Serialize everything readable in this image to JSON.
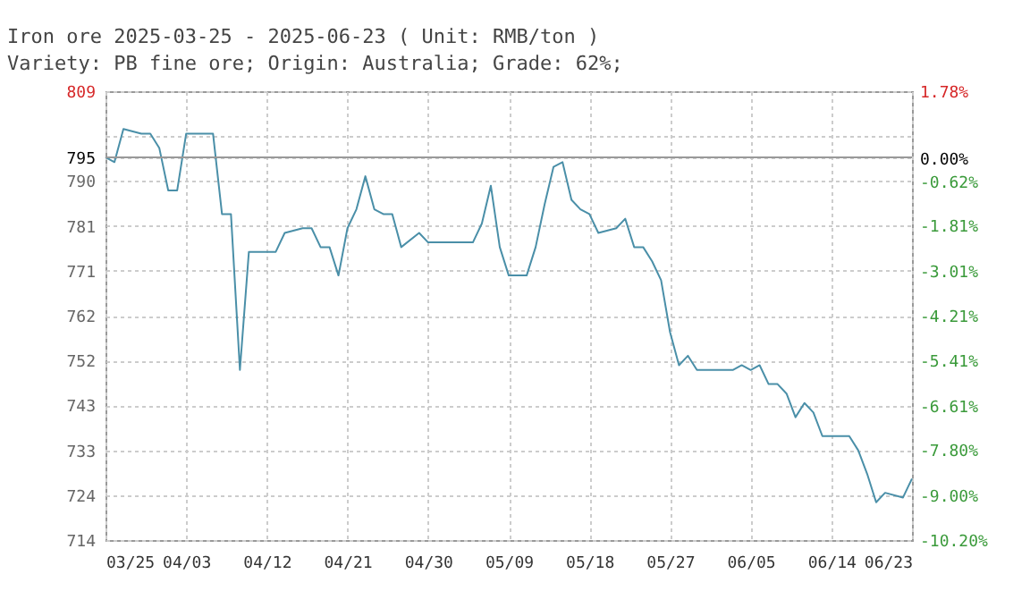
{
  "chart_data": {
    "type": "line",
    "title": "Iron ore 2025-03-25 - 2025-06-23    ( Unit: RMB/ton )",
    "subtitle": "Variety: PB fine ore; Origin: Australia; Grade: 62%;",
    "x": [
      "2025-03-25",
      "2025-03-26",
      "2025-03-27",
      "2025-03-29",
      "2025-03-30",
      "2025-03-31",
      "2025-04-01",
      "2025-04-02",
      "2025-04-03",
      "2025-04-06",
      "2025-04-07",
      "2025-04-08",
      "2025-04-09",
      "2025-04-10",
      "2025-04-13",
      "2025-04-14",
      "2025-04-16",
      "2025-04-17",
      "2025-04-18",
      "2025-04-19",
      "2025-04-20",
      "2025-04-21",
      "2025-04-22",
      "2025-04-23",
      "2025-04-24",
      "2025-04-25",
      "2025-04-26",
      "2025-04-27",
      "2025-04-29",
      "2025-04-30",
      "2025-05-05",
      "2025-05-06",
      "2025-05-07",
      "2025-05-08",
      "2025-05-09",
      "2025-05-11",
      "2025-05-12",
      "2025-05-13",
      "2025-05-14",
      "2025-05-15",
      "2025-05-16",
      "2025-05-17",
      "2025-05-18",
      "2025-05-19",
      "2025-05-21",
      "2025-05-22",
      "2025-05-23",
      "2025-05-24",
      "2025-05-25",
      "2025-05-26",
      "2025-05-27",
      "2025-05-28",
      "2025-05-29",
      "2025-05-30",
      "2025-06-03",
      "2025-06-04",
      "2025-06-05",
      "2025-06-06",
      "2025-06-07",
      "2025-06-08",
      "2025-06-09",
      "2025-06-10",
      "2025-06-11",
      "2025-06-12",
      "2025-06-13",
      "2025-06-16",
      "2025-06-17",
      "2025-06-18",
      "2025-06-19",
      "2025-06-20",
      "2025-06-22",
      "2025-06-23"
    ],
    "series": [
      {
        "color": "#4a8fa8",
        "values": [
          795,
          794,
          801,
          800,
          800,
          797,
          788,
          788,
          800,
          800,
          783,
          783,
          750,
          775,
          775,
          779,
          780,
          780,
          776,
          776,
          770,
          780,
          784,
          791,
          784,
          783,
          783,
          776,
          779,
          777,
          777,
          781,
          789,
          776,
          770,
          770,
          776,
          785,
          793,
          794,
          786,
          784,
          783,
          779,
          780,
          782,
          776,
          776,
          773,
          769,
          758,
          751,
          753,
          750,
          750,
          751,
          750,
          751,
          747,
          747,
          745,
          740,
          743,
          741,
          736,
          736,
          733,
          728,
          722,
          724,
          723,
          727
        ]
      }
    ],
    "xlim": [
      "2025-03-25",
      "2025-06-23"
    ],
    "xticks": [
      {
        "value": "2025-03-25",
        "label": "03/25"
      },
      {
        "value": "2025-04-03",
        "label": "04/03"
      },
      {
        "value": "2025-04-12",
        "label": "04/12"
      },
      {
        "value": "2025-04-21",
        "label": "04/21"
      },
      {
        "value": "2025-04-30",
        "label": "04/30"
      },
      {
        "value": "2025-05-09",
        "label": "05/09"
      },
      {
        "value": "2025-05-18",
        "label": "05/18"
      },
      {
        "value": "2025-05-27",
        "label": "05/27"
      },
      {
        "value": "2025-06-05",
        "label": "06/05"
      },
      {
        "value": "2025-06-14",
        "label": "06/14"
      },
      {
        "value": "2025-06-23",
        "label": "06/23"
      }
    ],
    "ylim": [
      714,
      809
    ],
    "yticks": [
      714,
      {
        "value": 723.5,
        "label": "724"
      },
      733,
      {
        "value": 742.5,
        "label": "743"
      },
      752,
      {
        "value": 761.5,
        "label": "762"
      },
      771,
      {
        "value": 780.5,
        "label": "781"
      },
      790,
      795,
      {
        "value": 799.5,
        "label": null
      },
      809
    ],
    "y2lim": [
      -10.2,
      1.78
    ],
    "y2ticks": [
      {
        "value": -10.2,
        "label": "-10.20%"
      },
      {
        "value": -9.0,
        "label": "-9.00%"
      },
      {
        "value": -7.8,
        "label": "-7.80%"
      },
      {
        "value": -6.61,
        "label": "-6.61%"
      },
      {
        "value": -5.41,
        "label": "-5.41%"
      },
      {
        "value": -4.21,
        "label": "-4.21%"
      },
      {
        "value": -3.01,
        "label": "-3.01%"
      },
      {
        "value": -1.81,
        "label": "-1.81%"
      },
      {
        "value": -0.62,
        "label": "-0.62%"
      },
      {
        "value": 0.0,
        "label": "0.00%"
      },
      {
        "value": 1.78,
        "label": "1.78%"
      }
    ],
    "ref_lines": [
      {
        "axis": "y",
        "value": 795,
        "color": "#999999",
        "line_style": "solid"
      }
    ],
    "grid": true,
    "marker": "none",
    "line_style": "solid"
  }
}
